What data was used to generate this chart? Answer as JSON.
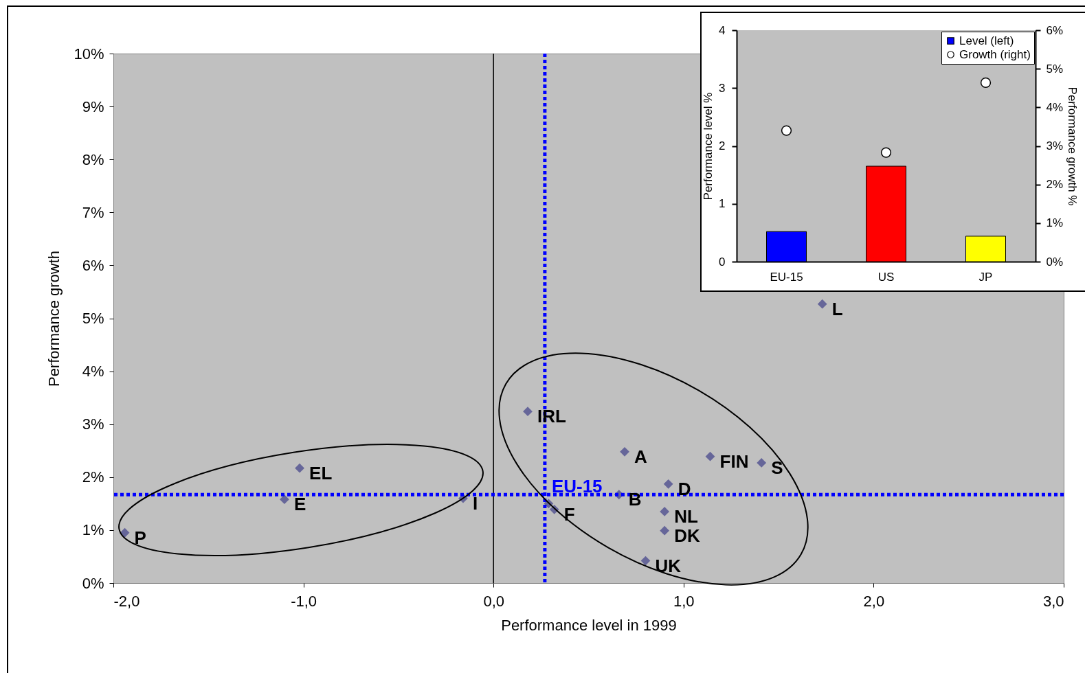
{
  "chart_data": [
    {
      "type": "scatter",
      "xlabel": "Performance level in 1999",
      "ylabel": "Performance growth",
      "marker": "diamond",
      "series": [
        {
          "color": "#666699",
          "x": [
            -1.94,
            -1.1,
            -1.02,
            -0.16,
            0.18,
            0.69,
            1.14,
            1.41,
            0.92,
            0.66,
            0.29,
            0.32,
            0.9,
            0.9,
            0.8,
            1.73
          ],
          "values": [
            0.95,
            1.58,
            2.17,
            1.6,
            3.24,
            2.48,
            2.39,
            2.27,
            1.87,
            1.67,
            1.5,
            1.39,
            1.35,
            0.99,
            0.42,
            5.27
          ]
        }
      ],
      "xlim": [
        -2,
        3
      ],
      "xticks": [
        {
          "value": -2,
          "label": "-2,0"
        },
        {
          "value": -1,
          "label": "-1,0"
        },
        {
          "value": 0,
          "label": "0,0"
        },
        {
          "value": 1,
          "label": "1,0"
        },
        {
          "value": 2,
          "label": "2,0"
        },
        {
          "value": 3,
          "label": "3,0"
        }
      ],
      "ylim": [
        0,
        10
      ],
      "yticks": [
        {
          "value": 0,
          "label": "0%"
        },
        {
          "value": 1,
          "label": "1%"
        },
        {
          "value": 2,
          "label": "2%"
        },
        {
          "value": 3,
          "label": "3%"
        },
        {
          "value": 4,
          "label": "4%"
        },
        {
          "value": 5,
          "label": "5%"
        },
        {
          "value": 6,
          "label": "6%"
        },
        {
          "value": 7,
          "label": "7%"
        },
        {
          "value": 8,
          "label": "8%"
        },
        {
          "value": 9,
          "label": "9%"
        },
        {
          "value": 10,
          "label": "10%"
        }
      ],
      "ref_lines": [
        {
          "axis": "x",
          "value": 0,
          "color": "#000000",
          "line_style": "solid"
        },
        {
          "axis": "x",
          "value": 0.27,
          "color": "#0000ff",
          "line_style": "dotted"
        },
        {
          "axis": "y",
          "value": 1.67,
          "label": "EU-15",
          "color": "#0000ff",
          "line_style": "dotted"
        }
      ],
      "annotations": [
        {
          "text": "P",
          "x": -1.94,
          "y": 0.95
        },
        {
          "text": "E",
          "x": -1.1,
          "y": 1.58
        },
        {
          "text": "EL",
          "x": -1.02,
          "y": 2.17
        },
        {
          "text": "I",
          "x": -0.16,
          "y": 1.6
        },
        {
          "text": "IRL",
          "x": 0.18,
          "y": 3.24
        },
        {
          "text": "A",
          "x": 0.69,
          "y": 2.48
        },
        {
          "text": "FIN",
          "x": 1.14,
          "y": 2.39
        },
        {
          "text": "S",
          "x": 1.41,
          "y": 2.27
        },
        {
          "text": "D",
          "x": 0.92,
          "y": 1.87
        },
        {
          "text": "B",
          "x": 0.66,
          "y": 1.67
        },
        {
          "text": "F",
          "x": 0.32,
          "y": 1.39
        },
        {
          "text": "NL",
          "x": 0.9,
          "y": 1.35
        },
        {
          "text": "DK",
          "x": 0.9,
          "y": 0.99
        },
        {
          "text": "UK",
          "x": 0.8,
          "y": 0.42
        },
        {
          "text": "L",
          "x": 1.73,
          "y": 5.27
        }
      ]
    },
    {
      "type": "bar",
      "categories": [
        "EU-15",
        "US",
        "JP"
      ],
      "ylabel": "Performance level %",
      "y2label": "Performance growth %",
      "legend": "top right",
      "marker": "circle",
      "series": [
        {
          "name": "Level (left)",
          "type": "bar",
          "colors": [
            "#0000ff",
            "#ff0000",
            "#ffff00"
          ],
          "values": [
            0.52,
            1.65,
            0.44
          ]
        },
        {
          "name": "Growth (right)",
          "type": "scatter",
          "axis": "y2",
          "color": "#ffffff",
          "values": [
            3.4,
            2.83,
            4.64
          ]
        }
      ],
      "ylim": [
        0,
        4
      ],
      "yticks": [
        0,
        1,
        2,
        3,
        4
      ],
      "y2lim": [
        0,
        6
      ],
      "y2ticks": [
        {
          "value": 0,
          "label": "0%"
        },
        {
          "value": 1,
          "label": "1%"
        },
        {
          "value": 2,
          "label": "2%"
        },
        {
          "value": 3,
          "label": "3%"
        },
        {
          "value": 4,
          "label": "4%"
        },
        {
          "value": 5,
          "label": "5%"
        },
        {
          "value": 6,
          "label": "6%"
        }
      ]
    }
  ]
}
